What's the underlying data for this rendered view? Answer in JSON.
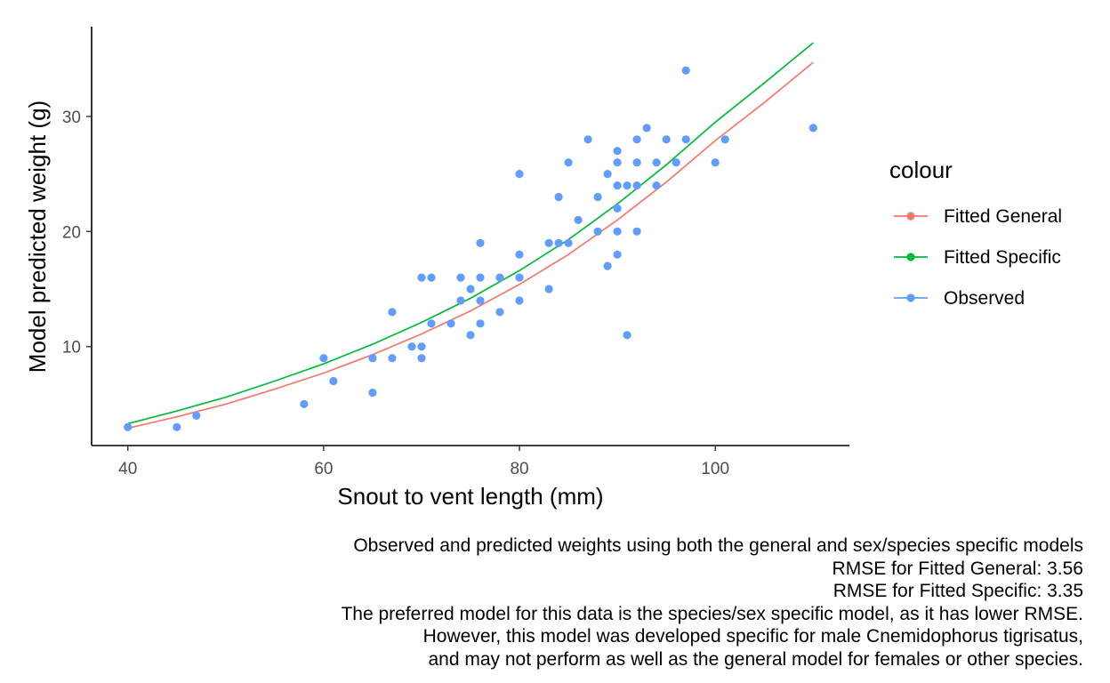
{
  "chart_data": {
    "type": "scatter",
    "xlabel": "Snout to vent length (mm)",
    "ylabel": "Model predicted weight (g)",
    "xlim": [
      36.3,
      113.7
    ],
    "ylim": [
      1.4,
      37.8
    ],
    "x_ticks": [
      40,
      60,
      80,
      100
    ],
    "y_ticks": [
      10,
      20,
      30
    ],
    "grid": false,
    "legend_position": "right",
    "legend_title": "colour",
    "legend": [
      {
        "label": "Fitted General",
        "color": "#F8766D"
      },
      {
        "label": "Fitted Specific",
        "color": "#00BA38"
      },
      {
        "label": "Observed",
        "color": "#619CFF"
      }
    ],
    "series": [
      {
        "name": "Observed",
        "kind": "points",
        "color": "#619CFF",
        "points": [
          [
            40,
            3
          ],
          [
            45,
            3
          ],
          [
            47,
            4
          ],
          [
            58,
            5
          ],
          [
            60,
            9
          ],
          [
            61,
            7
          ],
          [
            65,
            6
          ],
          [
            65,
            9
          ],
          [
            67,
            9
          ],
          [
            67,
            13
          ],
          [
            69,
            10
          ],
          [
            70,
            9
          ],
          [
            70,
            10
          ],
          [
            70,
            16
          ],
          [
            71,
            12
          ],
          [
            71,
            16
          ],
          [
            73,
            12
          ],
          [
            74,
            14
          ],
          [
            74,
            16
          ],
          [
            75,
            11
          ],
          [
            75,
            15
          ],
          [
            76,
            12
          ],
          [
            76,
            14
          ],
          [
            76,
            16
          ],
          [
            76,
            19
          ],
          [
            78,
            13
          ],
          [
            78,
            16
          ],
          [
            80,
            14
          ],
          [
            80,
            16
          ],
          [
            80,
            18
          ],
          [
            80,
            25
          ],
          [
            83,
            15
          ],
          [
            83,
            19
          ],
          [
            84,
            19
          ],
          [
            84,
            23
          ],
          [
            85,
            19
          ],
          [
            85,
            26
          ],
          [
            86,
            21
          ],
          [
            87,
            28
          ],
          [
            88,
            20
          ],
          [
            88,
            23
          ],
          [
            89,
            17
          ],
          [
            89,
            25
          ],
          [
            90,
            18
          ],
          [
            90,
            20
          ],
          [
            90,
            22
          ],
          [
            90,
            24
          ],
          [
            90,
            26
          ],
          [
            90,
            27
          ],
          [
            91,
            11
          ],
          [
            91,
            24
          ],
          [
            92,
            20
          ],
          [
            92,
            24
          ],
          [
            92,
            26
          ],
          [
            92,
            28
          ],
          [
            93,
            29
          ],
          [
            94,
            24
          ],
          [
            94,
            26
          ],
          [
            95,
            28
          ],
          [
            96,
            26
          ],
          [
            97,
            28
          ],
          [
            97,
            34
          ],
          [
            100,
            26
          ],
          [
            101,
            28
          ],
          [
            110,
            29
          ]
        ]
      },
      {
        "name": "Fitted General",
        "kind": "line",
        "color": "#F8766D",
        "points": [
          [
            40,
            2.9
          ],
          [
            45,
            3.9
          ],
          [
            50,
            5.0
          ],
          [
            55,
            6.3
          ],
          [
            60,
            7.7
          ],
          [
            65,
            9.3
          ],
          [
            70,
            11.1
          ],
          [
            75,
            13.1
          ],
          [
            80,
            15.4
          ],
          [
            85,
            18.0
          ],
          [
            90,
            21.0
          ],
          [
            95,
            24.3
          ],
          [
            100,
            27.9
          ],
          [
            105,
            31.2
          ],
          [
            110,
            34.7
          ]
        ]
      },
      {
        "name": "Fitted Specific",
        "kind": "line",
        "color": "#00BA38",
        "points": [
          [
            40,
            3.3
          ],
          [
            45,
            4.4
          ],
          [
            50,
            5.6
          ],
          [
            55,
            7.0
          ],
          [
            60,
            8.5
          ],
          [
            65,
            10.2
          ],
          [
            70,
            12.1
          ],
          [
            75,
            14.2
          ],
          [
            80,
            16.6
          ],
          [
            85,
            19.3
          ],
          [
            90,
            22.4
          ],
          [
            95,
            25.8
          ],
          [
            100,
            29.5
          ],
          [
            105,
            32.9
          ],
          [
            110,
            36.4
          ]
        ]
      }
    ]
  },
  "caption": [
    "Observed and predicted weights using both the general and sex/species specific models",
    "RMSE for Fitted General: 3.56",
    "RMSE for Fitted Specific: 3.35",
    "The preferred model for this data is the species/sex specific model, as it has lower RMSE.",
    "However, this model was developed specific for male Cnemidophorus tigrisatus,",
    "and may not perform as well as the general model for females or other species."
  ]
}
